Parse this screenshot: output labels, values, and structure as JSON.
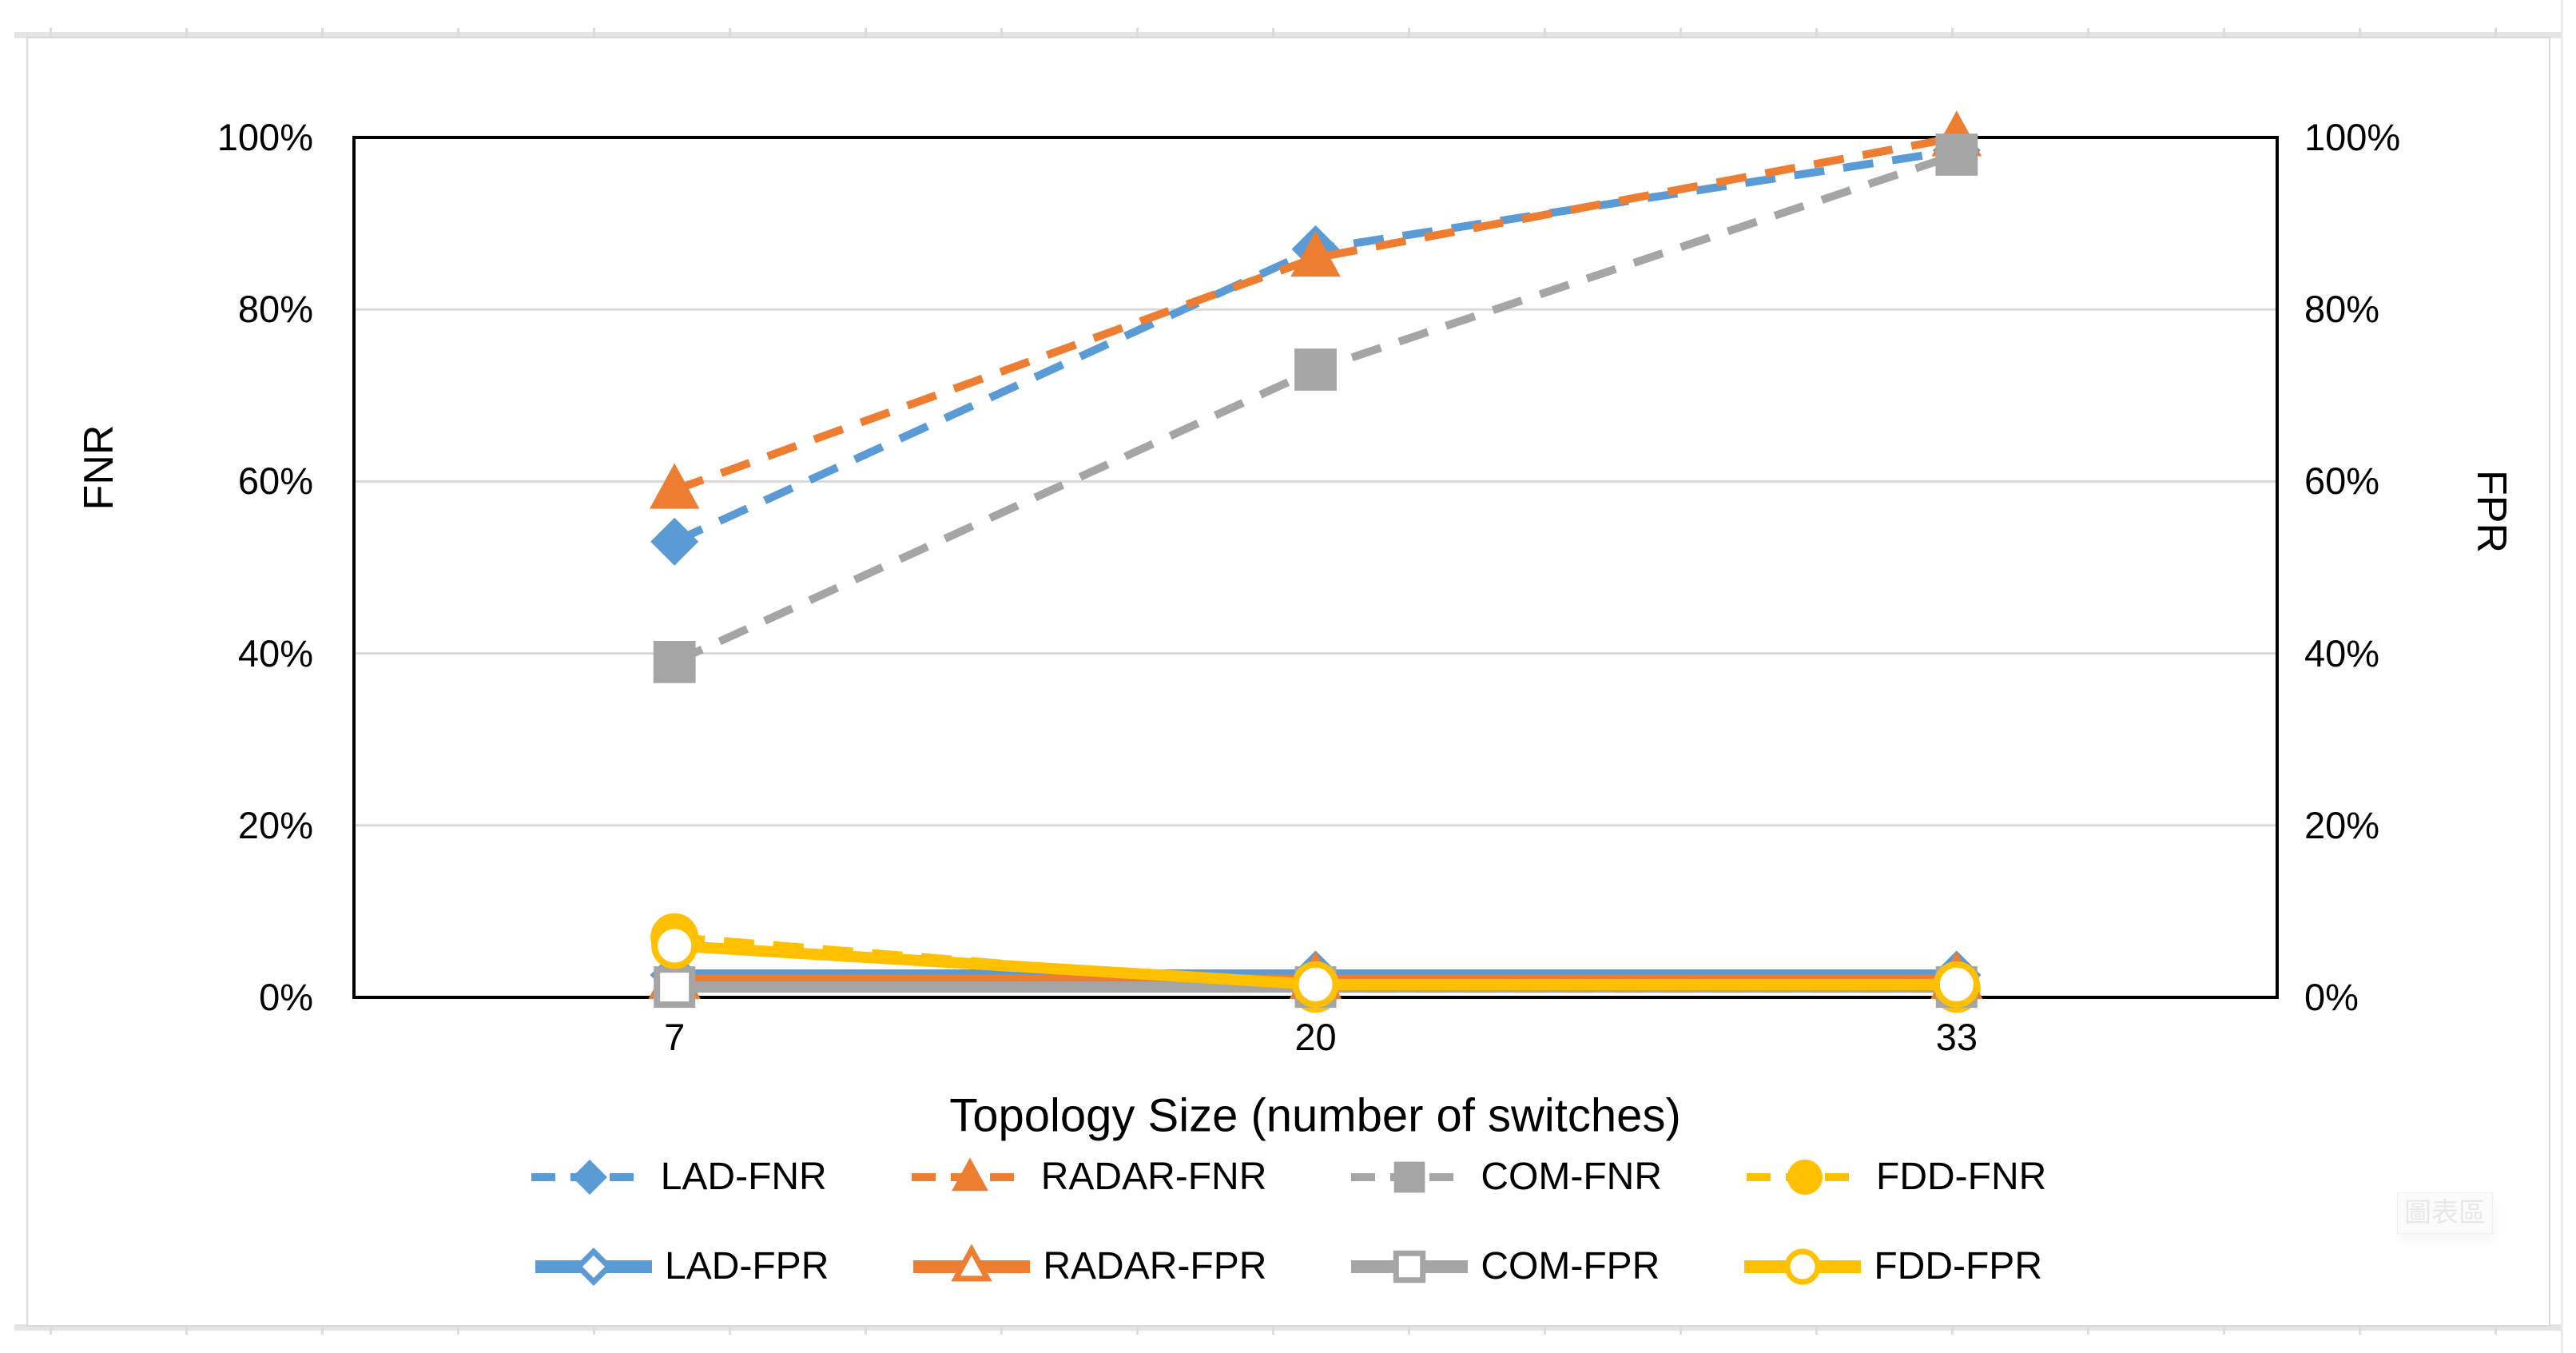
{
  "chart": {
    "tooltip": "圖表區"
  },
  "chart_data": {
    "type": "line",
    "title": "",
    "xlabel": "Topology Size (number of switches)",
    "ylabel_left": "FNR",
    "ylabel_right": "FPR",
    "x_categories": [
      "7",
      "20",
      "33"
    ],
    "x_values": [
      7,
      20,
      33
    ],
    "ylim": [
      0,
      100
    ],
    "y_tick_values": [
      0,
      20,
      40,
      60,
      80,
      100
    ],
    "y_tick_labels": [
      "0%",
      "20%",
      "40%",
      "60%",
      "80%",
      "100%"
    ],
    "gridline_values": [
      20,
      40,
      60,
      80
    ],
    "grid": "horizontal only",
    "legend_position": "bottom, two rows (FNR row above FPR row)",
    "dual_axis_note": "left axis FNR and right axis FPR share identical 0-100% scale",
    "layout": {
      "gridline_color": "#d9d9d9",
      "axis_color": "#000000",
      "background": "#ffffff"
    },
    "series": [
      {
        "name": "LAD-FNR",
        "axis": "left",
        "color": "#5b9bd5",
        "line_style": "dashed",
        "marker": "diamond",
        "marker_fill": "filled",
        "values_percent": [
          53,
          87,
          98.5
        ]
      },
      {
        "name": "RADAR-FNR",
        "axis": "left",
        "color": "#ed7d31",
        "line_style": "dashed",
        "marker": "triangle",
        "marker_fill": "filled",
        "values_percent": [
          59,
          86,
          100
        ]
      },
      {
        "name": "COM-FNR",
        "axis": "left",
        "color": "#a5a5a5",
        "line_style": "dashed",
        "marker": "square",
        "marker_fill": "filled",
        "values_percent": [
          39,
          73,
          98
        ]
      },
      {
        "name": "FDD-FNR",
        "axis": "left",
        "color": "#ffc000",
        "line_style": "dashed",
        "marker": "circle",
        "marker_fill": "filled",
        "values_percent": [
          7,
          1,
          1
        ]
      },
      {
        "name": "LAD-FPR",
        "axis": "right",
        "color": "#5b9bd5",
        "line_style": "solid",
        "marker": "diamond",
        "marker_fill": "open",
        "values_percent": [
          2.6,
          2.6,
          2.6
        ]
      },
      {
        "name": "RADAR-FPR",
        "axis": "right",
        "color": "#ed7d31",
        "line_style": "solid",
        "marker": "triangle",
        "marker_fill": "open",
        "values_percent": [
          2,
          2,
          2
        ]
      },
      {
        "name": "COM-FPR",
        "axis": "right",
        "color": "#a5a5a5",
        "line_style": "solid",
        "marker": "square",
        "marker_fill": "open",
        "values_percent": [
          1.2,
          1.2,
          1.2
        ]
      },
      {
        "name": "FDD-FPR",
        "axis": "right",
        "color": "#ffc000",
        "line_style": "solid",
        "marker": "circle",
        "marker_fill": "open",
        "values_percent": [
          6,
          1.5,
          1.5
        ]
      }
    ]
  }
}
